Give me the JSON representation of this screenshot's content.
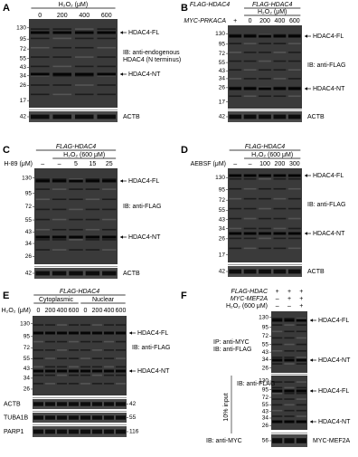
{
  "panels": [
    {
      "letter": "A",
      "groups": [
        "H₂O₂ (μM)"
      ],
      "rows": [
        {
          "cells": [
            "0",
            "200",
            "400",
            "600"
          ]
        }
      ],
      "blots": [
        {
          "markers": [
            130,
            95,
            72,
            55,
            43,
            34,
            26,
            17
          ],
          "labels": [
            "HDAC4-FL",
            "IB: anti-endogenous",
            "HDAC4 (N terminus)",
            "HDAC4-NT"
          ]
        },
        {
          "markers": [
            42
          ],
          "labels": [
            "ACTB"
          ]
        }
      ]
    },
    {
      "letter": "B",
      "groups": [
        "FLAG-HDAC4",
        "FLAG-HDAC4",
        "H₂O₂ (μM)"
      ],
      "rows": [
        {
          "label": "MYC-PRKACA",
          "cells": [
            "+",
            "0",
            "200",
            "400",
            "600"
          ]
        }
      ],
      "blots": [
        {
          "markers": [
            130,
            95,
            72,
            55,
            43,
            34,
            26,
            17
          ],
          "labels": [
            "HDAC4-FL",
            "IB: anti-FLAG",
            "HDAC4-NT"
          ]
        },
        {
          "markers": [
            42
          ],
          "labels": [
            "ACTB"
          ]
        }
      ]
    },
    {
      "letter": "C",
      "groups": [
        "FLAG-HDAC4",
        "H₂O₂ (600 μM)"
      ],
      "rows": [
        {
          "label": "H-89 (μM)",
          "cells": [
            "–",
            "–",
            "5",
            "15",
            "25"
          ]
        }
      ],
      "blots": [
        {
          "markers": [
            130,
            95,
            72,
            55,
            43,
            34,
            26
          ],
          "labels": [
            "HDAC4-FL",
            "IB: anti-FLAG",
            "HDAC4-NT"
          ]
        },
        {
          "markers": [
            42
          ],
          "labels": [
            "ACTB"
          ]
        }
      ]
    },
    {
      "letter": "D",
      "groups": [
        "FLAG-HDAC4",
        "H₂O₂ (600 μM)"
      ],
      "rows": [
        {
          "label": "AEBSF (μM)",
          "cells": [
            "–",
            "–",
            "100",
            "200",
            "300"
          ]
        }
      ],
      "blots": [
        {
          "markers": [
            130,
            95,
            72,
            55,
            43,
            34,
            26,
            17
          ],
          "labels": [
            "HDAC4-FL",
            "IB: anti-FLAG",
            "HDAC4-NT"
          ]
        },
        {
          "markers": [
            42
          ],
          "labels": [
            "ACTB"
          ]
        }
      ]
    },
    {
      "letter": "E",
      "groups": [
        "FLAG-HDAC4",
        "Cytoplasmic",
        "Nuclear"
      ],
      "rows": [
        {
          "label": "H₂O₂ (μM)",
          "cells": [
            "0",
            "200",
            "400",
            "600",
            "0",
            "200",
            "400",
            "600"
          ]
        }
      ],
      "blots": [
        {
          "markers": [
            130,
            95,
            72,
            55,
            43,
            34,
            26
          ],
          "labels": [
            "HDAC4-FL",
            "IB: anti-FLAG",
            "HDAC4-NT"
          ]
        },
        {
          "markers": [
            42
          ],
          "labels": [
            "ACTB"
          ]
        },
        {
          "markers": [
            55
          ],
          "labels": [
            "TUBA1B"
          ]
        },
        {
          "markers": [
            116
          ],
          "labels": [
            "PARP1"
          ]
        }
      ]
    },
    {
      "letter": "F",
      "groups": [],
      "rows": [
        {
          "label": "FLAG-HDAC",
          "cells": [
            "+",
            "+",
            "+"
          ]
        },
        {
          "label": "MYC-MEF2A",
          "cells": [
            "–",
            "+",
            "+"
          ]
        },
        {
          "label": "H₂O₂ (600 μM)",
          "cells": [
            "–",
            "–",
            "+"
          ]
        }
      ],
      "blots": [
        {
          "markers": [
            130,
            95,
            72,
            55,
            43,
            34,
            26
          ],
          "notes": [
            "IP: anti-MYC",
            "IB: anti-FLAG"
          ],
          "labels": [
            "HDAC4-FL",
            "HDAC4-NT"
          ]
        },
        {
          "markers": [
            130,
            95,
            72,
            55,
            43,
            34,
            26
          ],
          "notes": [
            "IB: anti-FLAG",
            "10% input"
          ],
          "labels": [
            "HDAC4-FL",
            "HDAC4-NT"
          ]
        },
        {
          "markers": [
            56
          ],
          "notes": [
            "IB: anti-MYC"
          ],
          "labels": [
            "MYC-MEF2A"
          ]
        }
      ]
    }
  ]
}
